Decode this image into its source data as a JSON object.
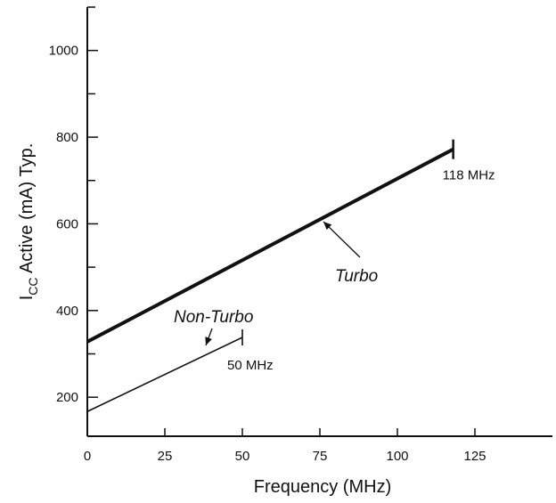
{
  "chart_data": {
    "type": "line",
    "xlabel": "Frequency (MHz)",
    "ylabel_main": "I",
    "ylabel_sub": "CC",
    "ylabel_rest": " Active (mA) Typ.",
    "xlim": [
      0,
      150
    ],
    "ylim": [
      110,
      1100
    ],
    "x_ticks": [
      0,
      25,
      50,
      75,
      100,
      125
    ],
    "x_tick_labels": [
      "0",
      "25",
      "50",
      "75",
      "100",
      "125"
    ],
    "y_ticks": [
      200,
      400,
      600,
      800,
      1000
    ],
    "y_tick_labels": [
      "200",
      "400",
      "600",
      "800",
      "1000"
    ],
    "grid": false,
    "series": [
      {
        "name": "Turbo",
        "x": [
          0,
          118
        ],
        "y": [
          328,
          772
        ],
        "end_label": "118 MHz",
        "stroke_width": "thick"
      },
      {
        "name": "Non-Turbo",
        "x": [
          0,
          50
        ],
        "y": [
          167,
          338
        ],
        "end_label": "50 MHz",
        "stroke_width": "thin"
      }
    ]
  }
}
